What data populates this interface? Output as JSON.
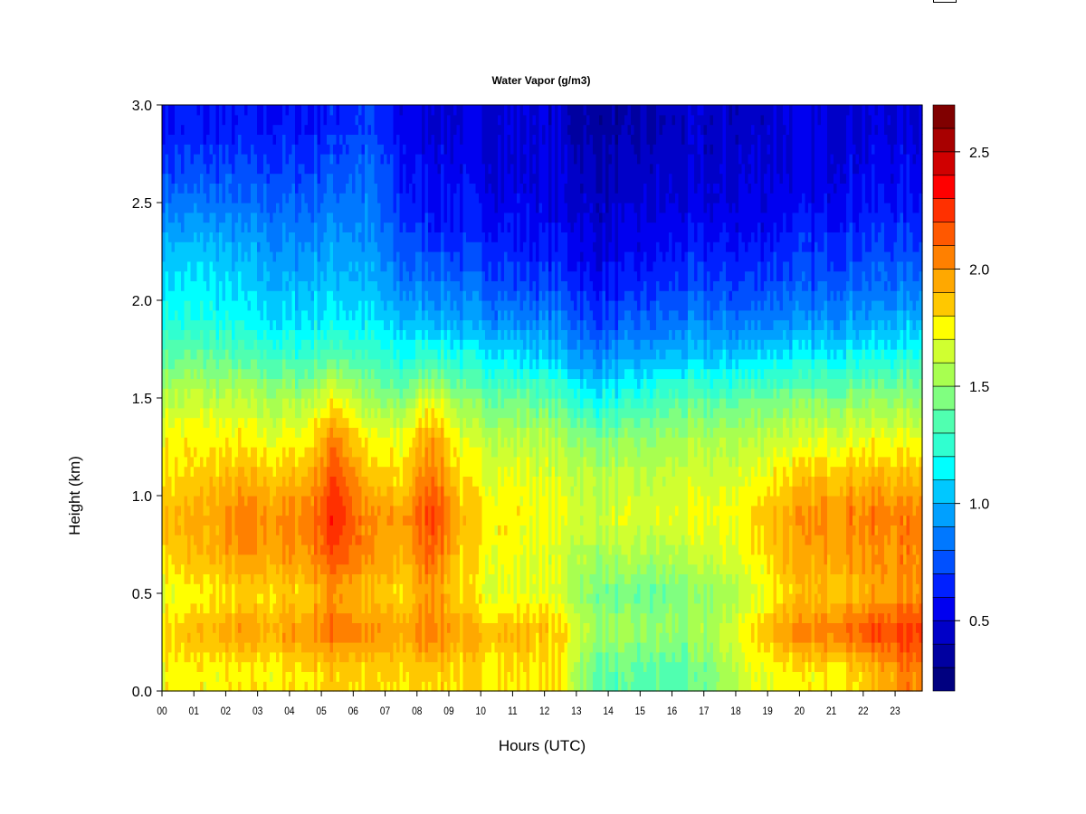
{
  "chart_data": {
    "type": "heatmap",
    "title": "Water Vapor (g/m3)",
    "xlabel": "Hours (UTC)",
    "ylabel": "Height (km)",
    "xlim": [
      0,
      23.85
    ],
    "ylim": [
      0,
      3.0
    ],
    "x_ticks": [
      "00",
      "01",
      "02",
      "03",
      "04",
      "05",
      "06",
      "07",
      "08",
      "09",
      "10",
      "11",
      "12",
      "13",
      "14",
      "15",
      "16",
      "17",
      "18",
      "19",
      "20",
      "21",
      "22",
      "23"
    ],
    "y_ticks": [
      "0.0",
      "0.5",
      "1.0",
      "1.5",
      "2.0",
      "2.5",
      "3.0"
    ],
    "colorbar": {
      "range": [
        0.2,
        2.7
      ],
      "step": 0.1,
      "ticks": [
        "0.5",
        "1.0",
        "1.5",
        "2.0",
        "2.5"
      ],
      "colors": [
        "#000080",
        "#0000a0",
        "#0000c8",
        "#0000f0",
        "#0020ff",
        "#0050ff",
        "#0078ff",
        "#00a0ff",
        "#00c8ff",
        "#00ffff",
        "#30ffd0",
        "#50ffb0",
        "#80ff80",
        "#a8ff50",
        "#d0ff30",
        "#ffff00",
        "#ffc800",
        "#ffa800",
        "#ff8000",
        "#ff5800",
        "#ff3000",
        "#ff0000",
        "#d00000",
        "#a80000",
        "#800000"
      ]
    },
    "x_hours": [
      0.5,
      1.5,
      2.5,
      3.5,
      4.5,
      5.5,
      6.5,
      7.5,
      8.5,
      9.5,
      10.5,
      11.5,
      12.5,
      13.5,
      14.5,
      15.5,
      16.5,
      17.5,
      18.5,
      19.5,
      20.5,
      21.5,
      22.5,
      23.5
    ],
    "heights_km": [
      0.1,
      0.3,
      0.5,
      0.7,
      0.9,
      1.1,
      1.3,
      1.5,
      1.7,
      1.9,
      2.1,
      2.3,
      2.5,
      2.7,
      2.9
    ],
    "values_by_hour": [
      [
        1.75,
        1.85,
        1.7,
        1.85,
        1.9,
        1.8,
        1.75,
        1.6,
        1.4,
        1.2,
        1.1,
        1.0,
        0.85,
        0.7,
        0.6
      ],
      [
        1.75,
        1.9,
        1.75,
        1.9,
        1.95,
        1.85,
        1.75,
        1.6,
        1.4,
        1.2,
        1.1,
        1.0,
        0.85,
        0.7,
        0.6
      ],
      [
        1.75,
        1.95,
        1.8,
        2.0,
        2.05,
        1.9,
        1.75,
        1.6,
        1.35,
        1.15,
        1.05,
        0.95,
        0.8,
        0.7,
        0.6
      ],
      [
        1.75,
        1.95,
        1.8,
        1.95,
        2.0,
        1.85,
        1.7,
        1.55,
        1.3,
        1.1,
        1.0,
        0.9,
        0.8,
        0.7,
        0.6
      ],
      [
        1.8,
        2.0,
        1.85,
        2.0,
        2.05,
        1.9,
        1.75,
        1.55,
        1.3,
        1.1,
        1.0,
        0.9,
        0.8,
        0.7,
        0.6
      ],
      [
        1.85,
        2.1,
        2.0,
        2.2,
        2.3,
        2.2,
        2.05,
        1.75,
        1.4,
        1.15,
        1.05,
        0.95,
        0.85,
        0.75,
        0.65
      ],
      [
        1.8,
        2.0,
        1.85,
        2.0,
        2.0,
        1.85,
        1.7,
        1.5,
        1.3,
        1.1,
        1.0,
        0.9,
        0.85,
        0.8,
        0.7
      ],
      [
        1.8,
        1.95,
        1.8,
        1.9,
        1.95,
        1.8,
        1.7,
        1.45,
        1.2,
        1.0,
        0.85,
        0.75,
        0.65,
        0.6,
        0.55
      ],
      [
        1.85,
        2.1,
        2.0,
        2.15,
        2.25,
        2.1,
        2.0,
        1.7,
        1.3,
        1.0,
        0.85,
        0.7,
        0.6,
        0.55,
        0.5
      ],
      [
        1.8,
        1.9,
        1.75,
        1.8,
        1.85,
        1.75,
        1.65,
        1.45,
        1.2,
        0.95,
        0.8,
        0.65,
        0.6,
        0.55,
        0.5
      ],
      [
        1.8,
        1.9,
        1.7,
        1.75,
        1.8,
        1.7,
        1.6,
        1.4,
        1.15,
        0.9,
        0.75,
        0.65,
        0.55,
        0.5,
        0.5
      ],
      [
        1.8,
        1.9,
        1.7,
        1.7,
        1.75,
        1.7,
        1.6,
        1.4,
        1.1,
        0.9,
        0.7,
        0.6,
        0.55,
        0.5,
        0.5
      ],
      [
        1.75,
        1.85,
        1.65,
        1.65,
        1.7,
        1.65,
        1.55,
        1.35,
        1.05,
        0.85,
        0.7,
        0.6,
        0.5,
        0.5,
        0.45
      ],
      [
        1.4,
        1.55,
        1.45,
        1.55,
        1.65,
        1.6,
        1.45,
        1.15,
        0.9,
        0.7,
        0.6,
        0.5,
        0.45,
        0.4,
        0.35
      ],
      [
        1.35,
        1.5,
        1.4,
        1.55,
        1.65,
        1.6,
        1.45,
        1.2,
        0.95,
        0.75,
        0.6,
        0.5,
        0.45,
        0.4,
        0.35
      ],
      [
        1.35,
        1.5,
        1.4,
        1.55,
        1.65,
        1.6,
        1.5,
        1.3,
        1.0,
        0.8,
        0.65,
        0.55,
        0.5,
        0.45,
        0.4
      ],
      [
        1.35,
        1.5,
        1.45,
        1.6,
        1.7,
        1.65,
        1.55,
        1.35,
        1.05,
        0.85,
        0.7,
        0.6,
        0.5,
        0.45,
        0.45
      ],
      [
        1.5,
        1.6,
        1.5,
        1.65,
        1.7,
        1.65,
        1.55,
        1.35,
        1.05,
        0.85,
        0.7,
        0.6,
        0.5,
        0.45,
        0.45
      ],
      [
        1.7,
        1.8,
        1.65,
        1.75,
        1.8,
        1.7,
        1.6,
        1.4,
        1.1,
        0.85,
        0.7,
        0.6,
        0.5,
        0.5,
        0.45
      ],
      [
        1.75,
        2.0,
        1.8,
        1.9,
        1.95,
        1.8,
        1.65,
        1.45,
        1.15,
        0.9,
        0.75,
        0.65,
        0.55,
        0.5,
        0.5
      ],
      [
        1.75,
        2.05,
        1.85,
        1.95,
        2.0,
        1.85,
        1.65,
        1.45,
        1.15,
        0.9,
        0.75,
        0.65,
        0.55,
        0.5,
        0.5
      ],
      [
        1.8,
        2.15,
        1.9,
        2.0,
        2.05,
        1.9,
        1.7,
        1.5,
        1.2,
        0.95,
        0.8,
        0.7,
        0.6,
        0.55,
        0.5
      ],
      [
        1.9,
        2.2,
        1.95,
        2.0,
        2.05,
        1.9,
        1.7,
        1.5,
        1.2,
        0.95,
        0.8,
        0.7,
        0.6,
        0.55,
        0.5
      ],
      [
        2.05,
        2.25,
        2.0,
        2.05,
        2.05,
        1.9,
        1.7,
        1.5,
        1.25,
        1.0,
        0.85,
        0.7,
        0.6,
        0.55,
        0.5
      ]
    ]
  }
}
